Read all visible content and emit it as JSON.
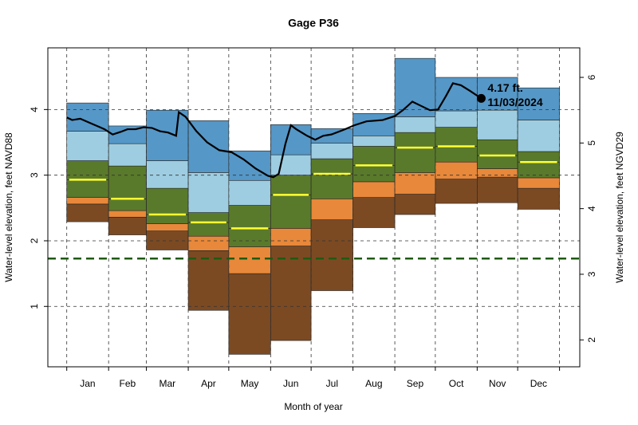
{
  "chart_data": {
    "type": "percentile-bands",
    "title": "Gage P36",
    "x_label": "Month of year",
    "y_label": "Water-level elevation, feet NAVD88",
    "y2_label": "Water-level elevation, feet NGVD29",
    "categories": [
      "Jan",
      "Feb",
      "Mar",
      "Apr",
      "May",
      "Jun",
      "Jul",
      "Aug",
      "Sep",
      "Oct",
      "Nov",
      "Dec"
    ],
    "xlim": [
      -14,
      380
    ],
    "xticks": [
      0,
      31,
      59,
      90,
      120,
      151,
      181,
      212,
      243,
      273,
      304,
      334,
      365
    ],
    "ylim": [
      0.08,
      4.94
    ],
    "yticks": [
      1,
      2,
      3,
      4
    ],
    "y2lim": [
      1.59,
      6.45
    ],
    "y2ticks": [
      2,
      3,
      4,
      5,
      6
    ],
    "grid": true,
    "series": [
      {
        "values": [
          2.29,
          2.09,
          1.86,
          0.94,
          0.27,
          0.48,
          1.24,
          2.2,
          2.4,
          2.57,
          2.58,
          2.48
        ]
      },
      {
        "color": "#7b4a23",
        "values": [
          2.56,
          2.36,
          2.15,
          1.85,
          1.5,
          1.92,
          2.32,
          2.66,
          2.71,
          2.94,
          2.97,
          2.8
        ]
      },
      {
        "color": "#e8883a",
        "values": [
          2.66,
          2.46,
          2.26,
          2.07,
          1.91,
          2.19,
          2.64,
          2.9,
          3.04,
          3.2,
          3.1,
          2.96
        ]
      },
      {
        "color": "#5a7a2b",
        "line_color": "#ffff33",
        "values": [
          2.93,
          2.64,
          2.4,
          2.28,
          2.19,
          2.7,
          3.02,
          3.15,
          3.42,
          3.44,
          3.3,
          3.2
        ]
      },
      {
        "color": "#5a7a2b",
        "values": [
          3.22,
          3.14,
          2.8,
          2.43,
          2.54,
          3.0,
          3.25,
          3.44,
          3.65,
          3.73,
          3.54,
          3.36
        ]
      },
      {
        "color": "#9ecde1",
        "values": [
          3.67,
          3.48,
          3.22,
          3.04,
          2.92,
          3.31,
          3.49,
          3.6,
          3.89,
          3.98,
          3.99,
          3.84
        ]
      },
      {
        "color": "#5597c7",
        "values": [
          4.1,
          3.75,
          3.99,
          3.83,
          3.37,
          3.77,
          3.71,
          3.94,
          4.78,
          4.49,
          4.49,
          4.33
        ]
      }
    ],
    "current": {
      "color": "#000000",
      "x": [
        0,
        4,
        10,
        19,
        28,
        34,
        40,
        45,
        51,
        57,
        63,
        69,
        75,
        81,
        83,
        88,
        96,
        104,
        113,
        122,
        131,
        140,
        149,
        153,
        157,
        162,
        166,
        170,
        178,
        184,
        190,
        196,
        205,
        213,
        222,
        234,
        243,
        249,
        256,
        262,
        269,
        275,
        281,
        286,
        292,
        299,
        307
      ],
      "values": [
        3.88,
        3.84,
        3.86,
        3.78,
        3.7,
        3.62,
        3.66,
        3.7,
        3.7,
        3.73,
        3.72,
        3.67,
        3.65,
        3.6,
        3.96,
        3.89,
        3.67,
        3.5,
        3.38,
        3.35,
        3.24,
        3.1,
        2.99,
        2.97,
        3.02,
        3.48,
        3.76,
        3.7,
        3.6,
        3.54,
        3.6,
        3.62,
        3.69,
        3.76,
        3.82,
        3.84,
        3.9,
        3.99,
        4.12,
        4.06,
        3.99,
        4.0,
        4.21,
        4.4,
        4.37,
        4.28,
        4.17
      ]
    },
    "annotation": {
      "value_label": "4.17 ft.",
      "date_label": "11/03/2024"
    },
    "threshold": {
      "value": 1.73,
      "color": "#1f5a12"
    }
  }
}
